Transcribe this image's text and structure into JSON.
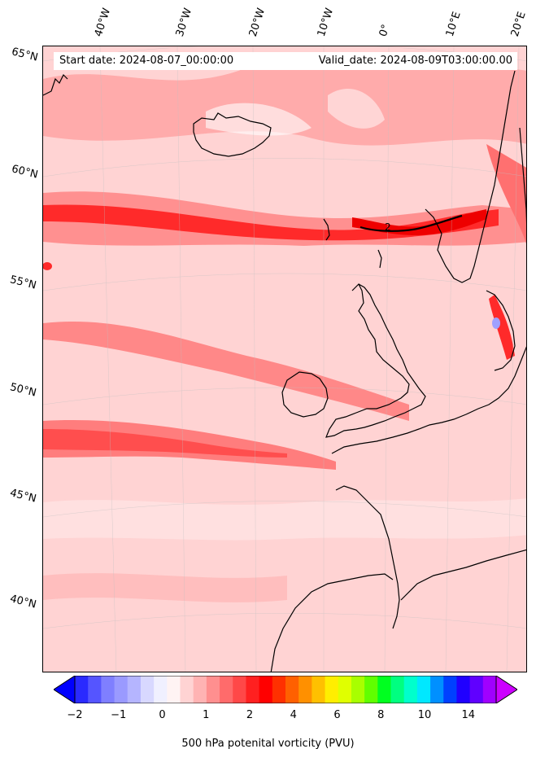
{
  "header": {
    "start_date": "Start date: 2024-08-07_00:00:00",
    "valid_date": "Valid_date: 2024-08-09T03:00:00.00"
  },
  "map": {
    "lat_labels": [
      "65°N",
      "60°N",
      "55°N",
      "50°N",
      "45°N",
      "40°N"
    ],
    "lon_labels": [
      "40°W",
      "30°W",
      "20°W",
      "10°W",
      "0°",
      "10°E",
      "20°E"
    ],
    "contour_label": "2"
  },
  "colorbar": {
    "label": "500 hPa potenital vorticity (PVU)",
    "ticks": [
      "−2",
      "−1",
      "0",
      "1",
      "2",
      "4",
      "6",
      "8",
      "10",
      "14"
    ],
    "colors": [
      "#0000ff",
      "#2a2aff",
      "#5555ff",
      "#7f7fff",
      "#9a9aff",
      "#b5b5ff",
      "#d8d8ff",
      "#f0f0ff",
      "#fff3f3",
      "#ffd3d3",
      "#ffb3b3",
      "#ff8f8f",
      "#ff6b6b",
      "#ff4848",
      "#ff2020",
      "#ff0000",
      "#ff3000",
      "#ff6000",
      "#ff9000",
      "#ffc000",
      "#ffee00",
      "#e0ff00",
      "#a8ff00",
      "#60ff00",
      "#00ff20",
      "#00ff80",
      "#00ffcc",
      "#00e8ff",
      "#0090ff",
      "#0040ff",
      "#2000ff",
      "#6000ff",
      "#a000ff",
      "#cc00ff"
    ]
  }
}
